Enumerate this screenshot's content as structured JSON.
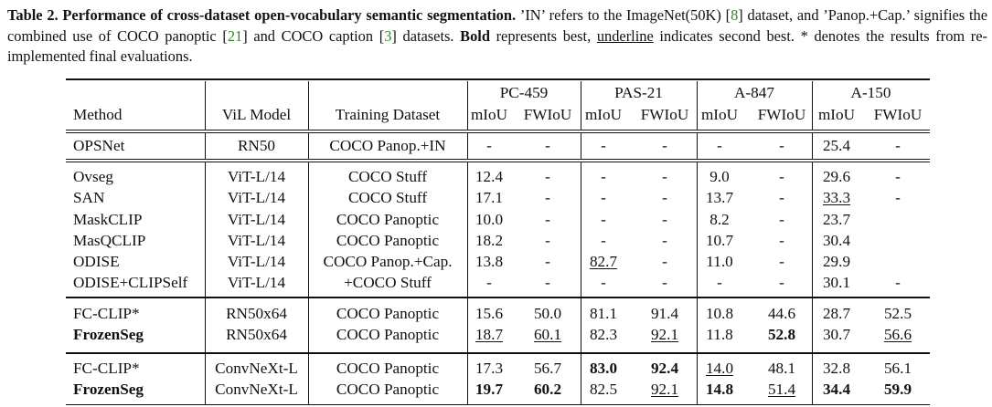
{
  "caption": {
    "label": "Table 2.",
    "title": "Performance of cross-dataset open-vocabulary semantic segmentation.",
    "t1": " ’IN’ refers to the ImageNet(50K) [",
    "ref1": "8",
    "t2": "] dataset, and ’Panop.+Cap.’ signifies the combined use of COCO panoptic [",
    "ref2": "21",
    "t3": "] and COCO caption [",
    "ref3": "3",
    "t4": "] datasets. ",
    "bold_word": "Bold",
    "t5": " represents best, ",
    "underline_word": "underline",
    "t6": " indicates second best. * denotes the results from re-implemented final evaluations."
  },
  "header": {
    "method": "Method",
    "vil": "ViL Model",
    "dataset": "Training Dataset",
    "groups": [
      "PC-459",
      "PAS-21",
      "A-847",
      "A-150"
    ],
    "sub": [
      "mIoU",
      "FWIoU"
    ]
  },
  "rows": [
    {
      "method": "OPSNet",
      "vil": "RN50",
      "dataset": "COCO Panop.+IN",
      "vals": [
        "-",
        "-",
        "-",
        "-",
        "-",
        "-",
        "25.4",
        "-"
      ]
    },
    {
      "method": "Ovseg",
      "vil": "ViT-L/14",
      "dataset": "COCO Stuff",
      "vals": [
        "12.4",
        "-",
        "-",
        "-",
        "9.0",
        "-",
        "29.6",
        "-"
      ]
    },
    {
      "method": "SAN",
      "vil": "ViT-L/14",
      "dataset": "COCO Stuff",
      "vals": [
        "17.1",
        "-",
        "-",
        "-",
        "13.7",
        "-",
        "33.3",
        "-"
      ],
      "u": [
        6
      ]
    },
    {
      "method": "MaskCLIP",
      "vil": "ViT-L/14",
      "dataset": "COCO Panoptic",
      "vals": [
        "10.0",
        "-",
        "-",
        "-",
        "8.2",
        "-",
        "23.7",
        ""
      ]
    },
    {
      "method": "MasQCLIP",
      "vil": "ViT-L/14",
      "dataset": "COCO Panoptic",
      "vals": [
        "18.2",
        "-",
        "-",
        "-",
        "10.7",
        "-",
        "30.4",
        ""
      ]
    },
    {
      "method": "ODISE",
      "vil": "ViT-L/14",
      "dataset": "COCO Panop.+Cap.",
      "vals": [
        "13.8",
        "-",
        "82.7",
        "-",
        "11.0",
        "-",
        "29.9",
        ""
      ],
      "u": [
        2
      ]
    },
    {
      "method": "ODISE+CLIPSelf",
      "vil": "ViT-L/14",
      "dataset": "+COCO Stuff",
      "vals": [
        "-",
        "-",
        "-",
        "-",
        "-",
        "-",
        "30.1",
        "-"
      ]
    },
    {
      "method": "FC-CLIP*",
      "vil": "RN50x64",
      "dataset": "COCO Panoptic",
      "vals": [
        "15.6",
        "50.0",
        "81.1",
        "91.4",
        "10.8",
        "44.6",
        "28.7",
        "52.5"
      ]
    },
    {
      "method": "FrozenSeg",
      "vil": "RN50x64",
      "dataset": "COCO Panoptic",
      "vals": [
        "18.7",
        "60.1",
        "82.3",
        "92.1",
        "11.8",
        "52.8",
        "30.7",
        "56.6"
      ],
      "bm": true,
      "u": [
        0,
        1,
        3,
        7
      ],
      "b": [
        5
      ]
    },
    {
      "method": "FC-CLIP*",
      "vil": "ConvNeXt-L",
      "dataset": "COCO Panoptic",
      "vals": [
        "17.3",
        "56.7",
        "83.0",
        "92.4",
        "14.0",
        "48.1",
        "32.8",
        "56.1"
      ],
      "u": [
        4
      ],
      "b": [
        2,
        3
      ]
    },
    {
      "method": "FrozenSeg",
      "vil": "ConvNeXt-L",
      "dataset": "COCO Panoptic",
      "vals": [
        "19.7",
        "60.2",
        "82.5",
        "92.1",
        "14.8",
        "51.4",
        "34.4",
        "59.9"
      ],
      "bm": true,
      "u": [
        3,
        5
      ],
      "b": [
        0,
        1,
        4,
        6,
        7
      ]
    }
  ]
}
